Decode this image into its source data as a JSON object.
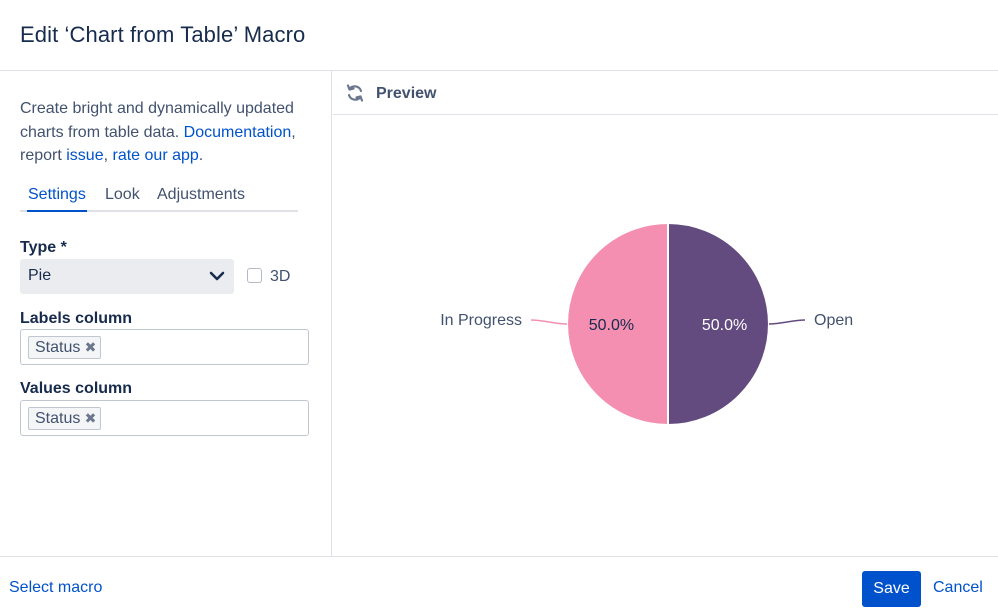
{
  "header": {
    "title": "Edit ‘Chart from Table’ Macro"
  },
  "description": {
    "line1": "Create bright and dynamically updated charts from table data. ",
    "documentation_link": "Documentation",
    "sep1": ", report ",
    "issue_link": "issue",
    "sep2": ", ",
    "rate_link": "rate our app",
    "end": "."
  },
  "tabs": [
    {
      "label": "Settings",
      "active": true
    },
    {
      "label": "Look",
      "active": false
    },
    {
      "label": "Adjustments",
      "active": false
    }
  ],
  "form": {
    "type_label": "Type *",
    "type_value": "Pie",
    "threed_label": "3D",
    "threed_checked": false,
    "labels_column_label": "Labels column",
    "labels_column_value": "Status",
    "values_column_label": "Values column",
    "values_column_value": "Status"
  },
  "preview": {
    "label": "Preview"
  },
  "chart_data": {
    "type": "pie",
    "slices": [
      {
        "label": "Open",
        "value": 50.0,
        "display": "50.0%",
        "color": "#634a7f"
      },
      {
        "label": "In Progress",
        "value": 50.0,
        "display": "50.0%",
        "color": "#f48fb1"
      }
    ]
  },
  "footer": {
    "select_macro": "Select macro",
    "save_label": "Save",
    "cancel_label": "Cancel"
  },
  "colors": {
    "accent": "#0052cc",
    "text": "#172b4d",
    "muted": "#42526e"
  }
}
